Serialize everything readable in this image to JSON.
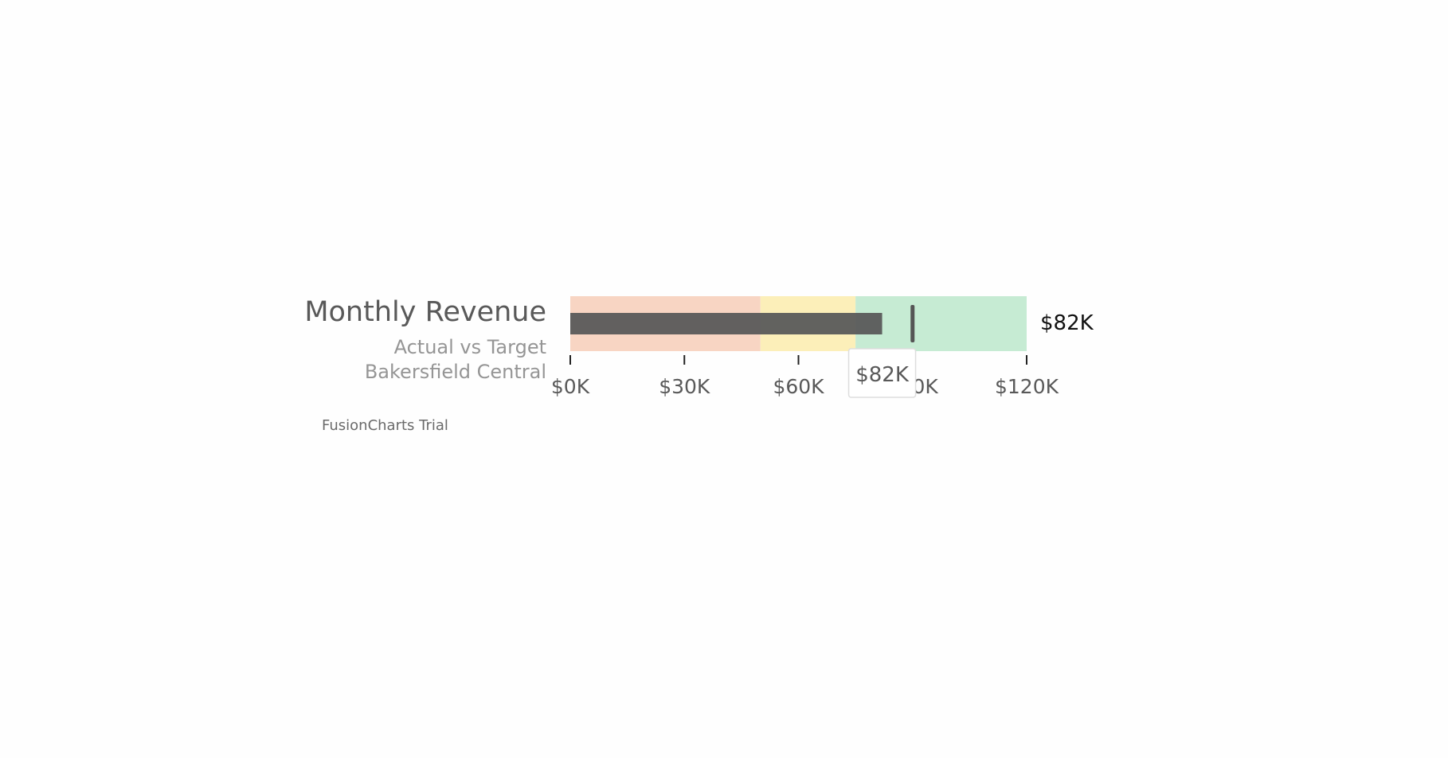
{
  "chart_data": {
    "type": "bullet",
    "title": "Monthly Revenue",
    "subtitle_lines": [
      "Actual vs Target",
      "Bakersfield Central"
    ],
    "value": 82,
    "value_label": "$82K",
    "target": 90,
    "tooltip": "$82K",
    "ylim": [
      0,
      120
    ],
    "ticks": [
      0,
      30,
      60,
      90,
      120
    ],
    "tick_labels": [
      "$0K",
      "$30K",
      "$60K",
      "$90K",
      "$120K"
    ],
    "ranges": [
      {
        "min": 0,
        "max": 50,
        "color": "#f8d5c3"
      },
      {
        "min": 50,
        "max": 75,
        "color": "#fcefb9"
      },
      {
        "min": 75,
        "max": 120,
        "color": "#c6ebd3"
      }
    ],
    "colors": {
      "plot": "#5a5a5a",
      "target": "#555555",
      "title": "#595959",
      "subtitle": "#959595",
      "tick_label": "#595959",
      "value_label": "#111111"
    }
  },
  "watermark": "FusionCharts Trial"
}
